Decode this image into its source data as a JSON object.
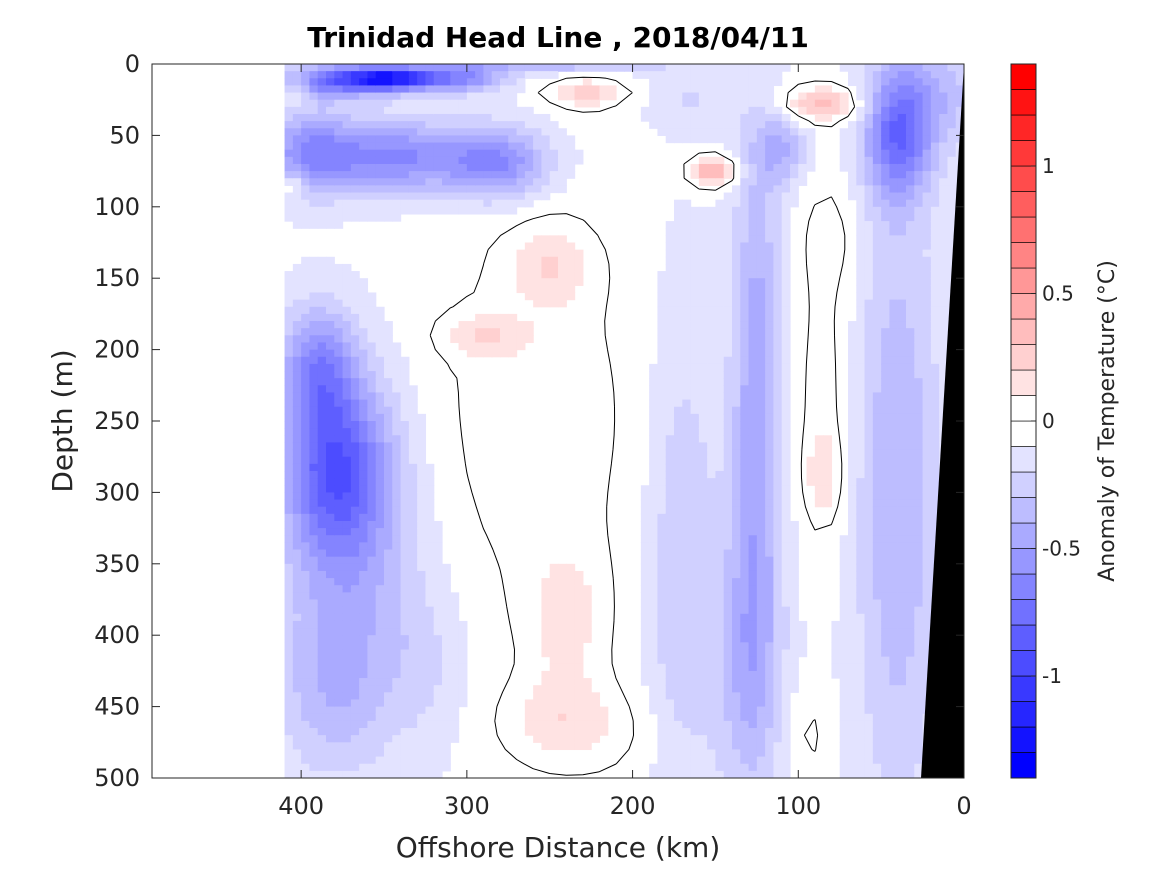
{
  "chart_data": {
    "type": "heatmap",
    "title": "Trinidad Head Line , 2018/04/11",
    "xlabel": "Offshore Distance (km)",
    "ylabel": "Depth (m)",
    "x_reversed": true,
    "xlim": [
      490,
      0
    ],
    "ylim": [
      0,
      500
    ],
    "y_reversed": true,
    "x_ticks": [
      400,
      300,
      200,
      100,
      0
    ],
    "y_ticks": [
      0,
      50,
      100,
      150,
      200,
      250,
      300,
      350,
      400,
      450,
      500
    ],
    "data_extent_x": [
      410,
      0
    ],
    "colorbar": {
      "label": "Anomaly of Temperature (°C)",
      "range": [
        -1.4,
        1.4
      ],
      "step": 0.1,
      "ticks": [
        -1,
        -0.5,
        0,
        0.5,
        1
      ],
      "tick_labels": [
        "-1",
        "-0.5",
        "0",
        "0.5",
        "1"
      ],
      "colormap": "blue-white-red",
      "low_color": "#0000ff",
      "high_color": "#ff0000"
    },
    "blobs": [
      {
        "x": 345,
        "y": 10,
        "rx": 30,
        "ry": 8,
        "v": -0.95
      },
      {
        "x": 380,
        "y": 12,
        "rx": 40,
        "ry": 12,
        "v": -0.55
      },
      {
        "x": 300,
        "y": 10,
        "rx": 25,
        "ry": 10,
        "v": -0.45
      },
      {
        "x": 250,
        "y": 0,
        "rx": 70,
        "ry": 6,
        "v": -0.3
      },
      {
        "x": 345,
        "y": 65,
        "rx": 55,
        "ry": 25,
        "v": -0.55
      },
      {
        "x": 280,
        "y": 70,
        "rx": 30,
        "ry": 25,
        "v": -0.45
      },
      {
        "x": 395,
        "y": 60,
        "rx": 25,
        "ry": 30,
        "v": -0.35
      },
      {
        "x": 380,
        "y": 280,
        "rx": 30,
        "ry": 60,
        "v": -0.6
      },
      {
        "x": 390,
        "y": 210,
        "rx": 22,
        "ry": 40,
        "v": -0.45
      },
      {
        "x": 370,
        "y": 330,
        "rx": 40,
        "ry": 100,
        "v": -0.35
      },
      {
        "x": 380,
        "y": 440,
        "rx": 35,
        "ry": 60,
        "v": -0.25
      },
      {
        "x": 228,
        "y": 20,
        "rx": 25,
        "ry": 10,
        "v": 0.32
      },
      {
        "x": 85,
        "y": 28,
        "rx": 24,
        "ry": 12,
        "v": 0.42
      },
      {
        "x": 152,
        "y": 75,
        "rx": 14,
        "ry": 10,
        "v": 0.5
      },
      {
        "x": 402,
        "y": 18,
        "rx": 8,
        "ry": 10,
        "v": 0.22
      },
      {
        "x": 405,
        "y": 85,
        "rx": 7,
        "ry": 8,
        "v": 0.25
      },
      {
        "x": 260,
        "y": 250,
        "rx": 70,
        "ry": 140,
        "v": 0.14
      },
      {
        "x": 250,
        "y": 140,
        "rx": 25,
        "ry": 30,
        "v": 0.22
      },
      {
        "x": 290,
        "y": 190,
        "rx": 25,
        "ry": 15,
        "v": 0.2
      },
      {
        "x": 240,
        "y": 390,
        "rx": 25,
        "ry": 50,
        "v": 0.2
      },
      {
        "x": 245,
        "y": 460,
        "rx": 35,
        "ry": 30,
        "v": 0.18
      },
      {
        "x": 220,
        "y": 470,
        "rx": 50,
        "ry": 35,
        "v": 0.08
      },
      {
        "x": 85,
        "y": 230,
        "rx": 18,
        "ry": 100,
        "v": 0.14
      },
      {
        "x": 85,
        "y": 290,
        "rx": 10,
        "ry": 30,
        "v": 0.2
      },
      {
        "x": 95,
        "y": 470,
        "rx": 12,
        "ry": 30,
        "v": 0.12
      },
      {
        "x": 125,
        "y": 230,
        "rx": 15,
        "ry": 180,
        "v": -0.4
      },
      {
        "x": 130,
        "y": 420,
        "rx": 20,
        "ry": 100,
        "v": -0.3
      },
      {
        "x": 170,
        "y": 350,
        "rx": 22,
        "ry": 180,
        "v": -0.22
      },
      {
        "x": 40,
        "y": 50,
        "rx": 20,
        "ry": 45,
        "v": -0.6
      },
      {
        "x": 40,
        "y": 300,
        "rx": 25,
        "ry": 220,
        "v": -0.32
      },
      {
        "x": 15,
        "y": 20,
        "rx": 30,
        "ry": 40,
        "v": -0.25
      },
      {
        "x": 80,
        "y": 120,
        "rx": 18,
        "ry": 40,
        "v": 0.12
      },
      {
        "x": 165,
        "y": 25,
        "rx": 25,
        "ry": 20,
        "v": -0.12
      },
      {
        "x": 325,
        "y": 420,
        "rx": 25,
        "ry": 60,
        "v": -0.12
      },
      {
        "x": 110,
        "y": 60,
        "rx": 15,
        "ry": 25,
        "v": -0.3
      }
    ]
  }
}
